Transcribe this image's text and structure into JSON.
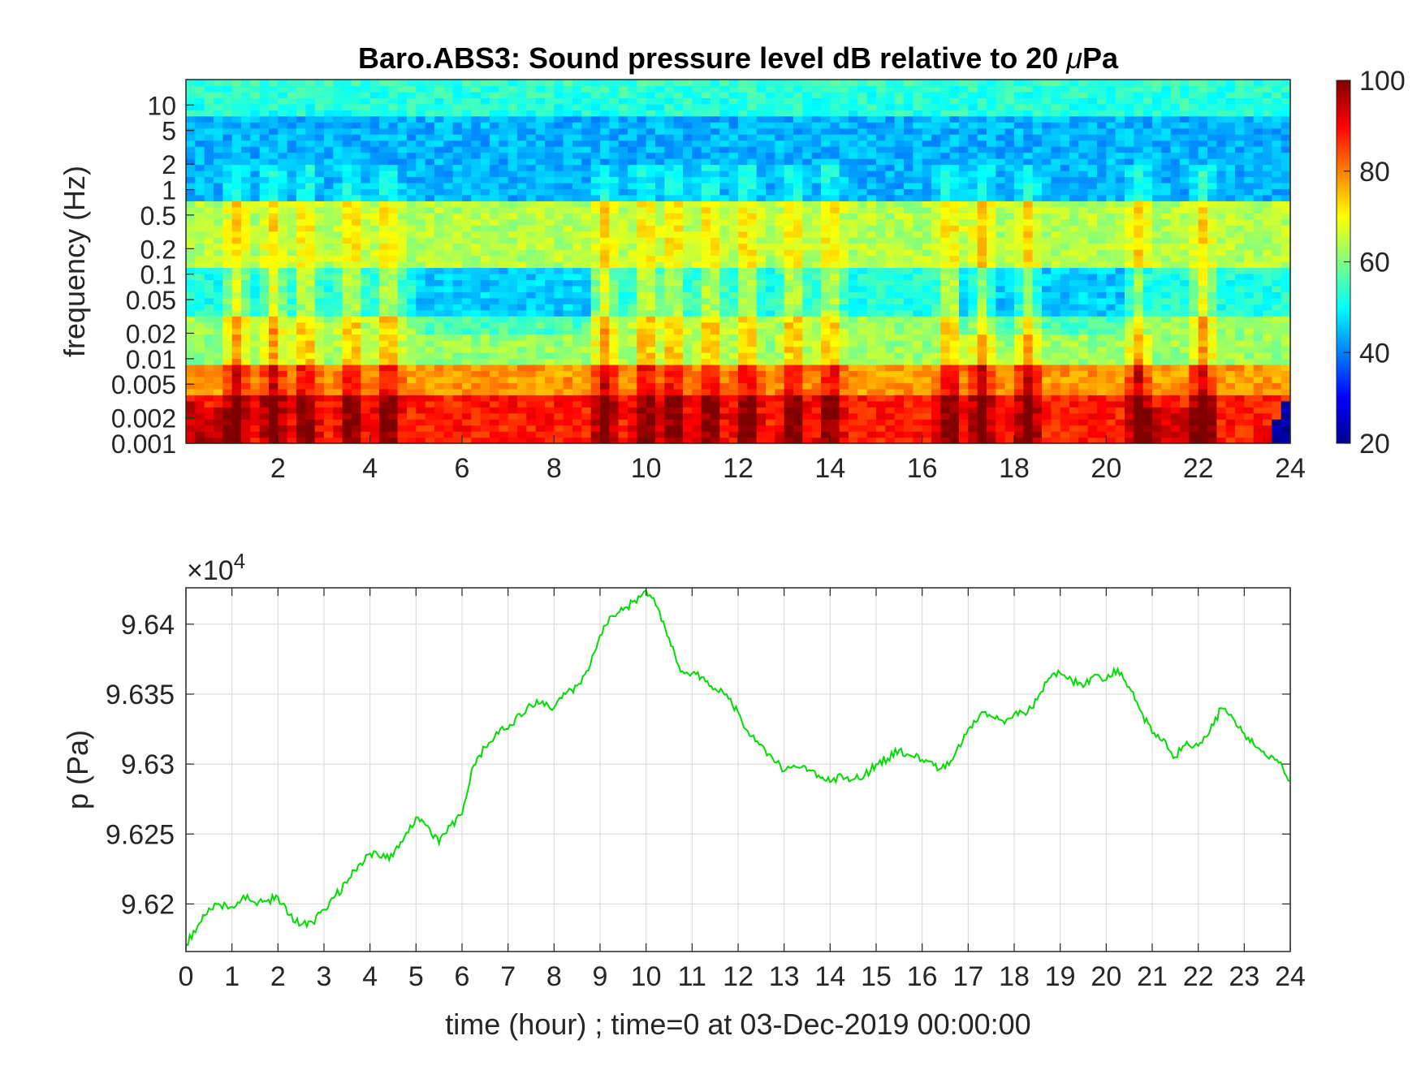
{
  "chart_data": [
    {
      "type": "heatmap",
      "title_prefix": "Baro.ABS3: Sound pressure level dB relative to 20 ",
      "title_unit": "Pa",
      "title_mu": "μ",
      "ylabel": "frequency (Hz)",
      "x_axis": {
        "range": [
          0,
          24
        ],
        "ticks": [
          "2",
          "4",
          "6",
          "8",
          "10",
          "12",
          "14",
          "16",
          "18",
          "20",
          "22",
          "24"
        ]
      },
      "y_axis": {
        "scale": "log",
        "range": [
          0.001,
          20
        ],
        "ticks": [
          "10",
          "5",
          "2",
          "1",
          "0.5",
          "0.2",
          "0.1",
          "0.05",
          "0.02",
          "0.01",
          "0.005",
          "0.002",
          "0.001"
        ]
      },
      "colorbar": {
        "range": [
          20,
          100
        ],
        "ticks": [
          "100",
          "80",
          "60",
          "40",
          "20"
        ],
        "colormap": "jet"
      },
      "grid": false
    },
    {
      "type": "line",
      "ylabel": "p (Pa)",
      "xlabel": "time (hour) ; time=0 at 03-Dec-2019 00:00:00",
      "y_multiplier_base": "×10",
      "y_multiplier_exp": "4",
      "x_axis": {
        "range": [
          0,
          24
        ],
        "ticks": [
          "0",
          "1",
          "2",
          "3",
          "4",
          "5",
          "6",
          "7",
          "8",
          "9",
          "10",
          "11",
          "12",
          "13",
          "14",
          "15",
          "16",
          "17",
          "18",
          "19",
          "20",
          "21",
          "22",
          "23",
          "24"
        ]
      },
      "y_axis": {
        "range": [
          9.6166,
          9.6426
        ],
        "ticks": [
          "9.64",
          "9.635",
          "9.63",
          "9.625",
          "9.62"
        ]
      },
      "grid": true,
      "color": "#00dd00",
      "series": [
        {
          "x": [
            0,
            0.25,
            0.5,
            0.75,
            1,
            1.25,
            1.5,
            1.75,
            2,
            2.25,
            2.5,
            2.75,
            3,
            3.25,
            3.5,
            3.75,
            4,
            4.25,
            4.5,
            4.75,
            5,
            5.25,
            5.5,
            5.75,
            6,
            6.25,
            6.5,
            6.75,
            7,
            7.25,
            7.5,
            7.75,
            8,
            8.25,
            8.5,
            8.75,
            9,
            9.25,
            9.5,
            9.75,
            10,
            10.25,
            10.5,
            10.75,
            11,
            11.25,
            11.5,
            11.75,
            12,
            12.25,
            12.5,
            12.75,
            13,
            13.25,
            13.5,
            13.75,
            14,
            14.25,
            14.5,
            14.75,
            15,
            15.25,
            15.5,
            15.75,
            16,
            16.25,
            16.5,
            16.75,
            17,
            17.25,
            17.5,
            17.75,
            18,
            18.25,
            18.5,
            18.75,
            19,
            19.25,
            19.5,
            19.75,
            20,
            20.25,
            20.5,
            20.75,
            21,
            21.25,
            21.5,
            21.75,
            22,
            22.25,
            22.5,
            22.75,
            23,
            23.25,
            23.5,
            23.75,
            24
          ],
          "values": [
            9.6171,
            9.6184,
            9.6197,
            9.6199,
            9.6198,
            9.6206,
            9.6201,
            9.6202,
            9.6205,
            9.6192,
            9.6185,
            9.6187,
            9.6196,
            9.6206,
            9.6215,
            9.6228,
            9.6236,
            9.6233,
            9.6234,
            9.6248,
            9.6262,
            9.6256,
            9.6243,
            9.6256,
            9.6264,
            9.6299,
            9.6312,
            9.6323,
            9.6325,
            9.6336,
            9.6342,
            9.6345,
            9.634,
            9.635,
            9.6356,
            9.6367,
            9.6392,
            9.6406,
            9.641,
            9.6417,
            9.6424,
            9.6412,
            9.639,
            9.6366,
            9.6365,
            9.6362,
            9.6354,
            9.635,
            9.6337,
            9.632,
            9.6314,
            9.6304,
            9.6295,
            9.6298,
            9.6295,
            9.6292,
            9.6287,
            9.6292,
            9.6289,
            9.6292,
            9.63,
            9.6304,
            9.631,
            9.6306,
            9.6303,
            9.6299,
            9.6297,
            9.631,
            9.6325,
            9.6335,
            9.6334,
            9.6331,
            9.6336,
            9.6335,
            9.6346,
            9.6361,
            9.6365,
            9.636,
            9.6355,
            9.6364,
            9.636,
            9.6368,
            9.6355,
            9.6338,
            9.6322,
            9.6318,
            9.6305,
            9.6316,
            9.6313,
            9.6323,
            9.634,
            9.6333,
            9.6322,
            9.6312,
            9.6305,
            9.6301,
            9.6288
          ]
        }
      ]
    }
  ]
}
